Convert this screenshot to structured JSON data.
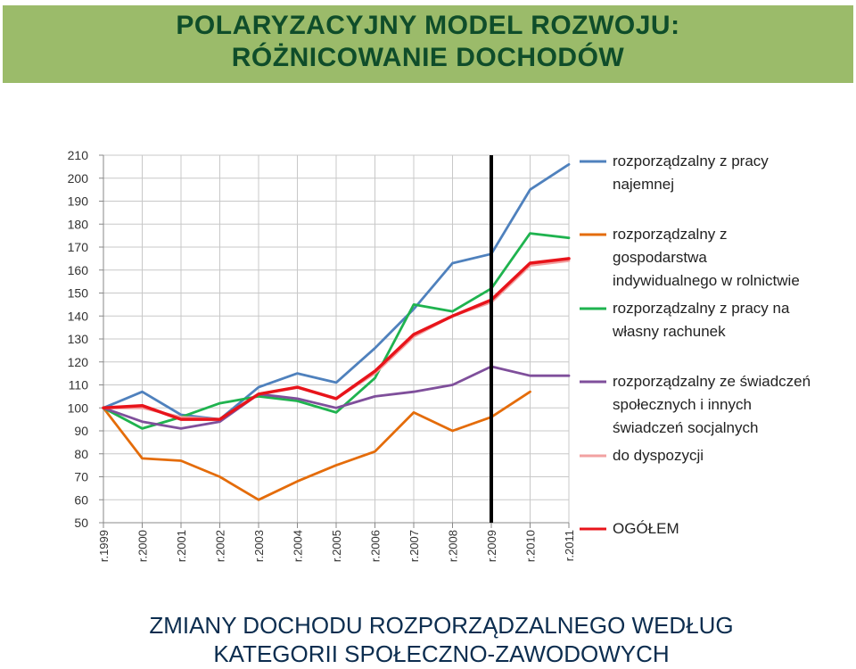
{
  "header": {
    "title_line1": "POLARYZACYJNY MODEL ROZWOJU:",
    "title_line2": "RÓŻNICOWANIE DOCHODÓW"
  },
  "caption": {
    "line1": "ZMIANY DOCHODU ROZPORZĄDZALNEGO WEDŁUG",
    "line2": "KATEGORII SPOŁECZNO-ZAWODOWYCH"
  },
  "chart_data": {
    "type": "line",
    "categories": [
      "r.1999",
      "r.2000",
      "r.2001",
      "r.2002",
      "r.2003",
      "r.2004",
      "r.2005",
      "r.2006",
      "r.2007",
      "r.2008",
      "r.2009",
      "r.2010",
      "r.2011"
    ],
    "ylim": [
      50,
      210
    ],
    "yticks": [
      50,
      60,
      70,
      80,
      90,
      100,
      110,
      120,
      130,
      140,
      150,
      160,
      170,
      180,
      190,
      200,
      210
    ],
    "grid": true,
    "legend_position": "right",
    "marker_line_category": "r.2009",
    "series": [
      {
        "name": "rozporządzalny z pracy najemnej",
        "legend_lines": [
          "rozporządzalny z pracy",
          "najemnej"
        ],
        "color": "#4f81bd",
        "values": [
          100,
          107,
          97,
          95,
          109,
          115,
          111,
          126,
          143,
          163,
          167,
          195,
          206
        ]
      },
      {
        "name": "rozporządzalny z gospodarstwa indywidualnego w rolnictwie",
        "legend_lines": [
          "rozporządzalny z",
          "gospodarstwa",
          "indywidualnego w rolnictwie"
        ],
        "color": "#e46c0a",
        "values": [
          100,
          78,
          77,
          70,
          60,
          68,
          75,
          81,
          98,
          90,
          96,
          107,
          null
        ]
      },
      {
        "name": "rozporządzalny z pracy na własny rachunek",
        "legend_lines": [
          "rozporządzalny z pracy na",
          "własny rachunek"
        ],
        "color": "#1fb34f",
        "values": [
          100,
          91,
          96,
          102,
          105,
          103,
          98,
          113,
          145,
          142,
          152,
          176,
          174
        ]
      },
      {
        "name": "rozporządzalny ze świadczeń społecznych i innych świadczeń socjalnych",
        "legend_lines": [
          "rozporządzalny ze świadczeń",
          "społecznych i innych",
          "świadczeń socjalnych"
        ],
        "color": "#7f4f9b",
        "values": [
          100,
          94,
          91,
          94,
          106,
          104,
          100,
          105,
          107,
          110,
          118,
          114,
          114
        ]
      },
      {
        "name": "do dyspozycji",
        "legend_lines": [
          "do dyspozycji"
        ],
        "color": "#f2a1a1",
        "values": [
          100,
          100,
          96,
          95,
          106,
          109,
          104,
          115,
          131,
          140,
          146,
          162,
          164
        ]
      },
      {
        "name": "OGÓŁEM",
        "legend_lines": [
          "OGÓŁEM"
        ],
        "color": "#e8141b",
        "values": [
          100,
          101,
          95,
          95,
          106,
          109,
          104,
          116,
          132,
          140,
          147,
          163,
          165
        ]
      }
    ]
  }
}
